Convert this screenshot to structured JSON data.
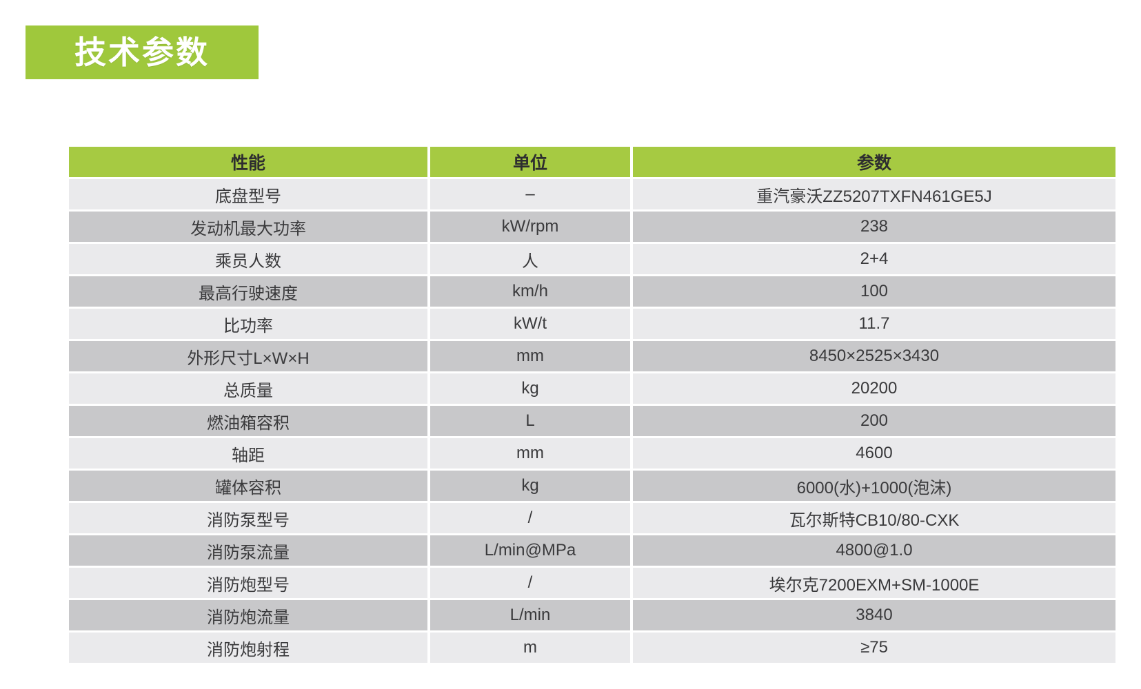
{
  "title_banner": {
    "text": "技术参数"
  },
  "table": {
    "headers": {
      "performance": "性能",
      "unit": "单位",
      "parameter": "参数"
    },
    "rows": [
      {
        "name": "底盘型号",
        "unit": "–",
        "value": "重汽豪沃ZZ5207TXFN461GE5J"
      },
      {
        "name": "发动机最大功率",
        "unit": "kW/rpm",
        "value": "238"
      },
      {
        "name": "乘员人数",
        "unit": "人",
        "value": "2+4"
      },
      {
        "name": "最高行驶速度",
        "unit": "km/h",
        "value": "100"
      },
      {
        "name": "比功率",
        "unit": "kW/t",
        "value": "11.7"
      },
      {
        "name": "外形尺寸L×W×H",
        "unit": "mm",
        "value": "8450×2525×3430"
      },
      {
        "name": "总质量",
        "unit": "kg",
        "value": "20200"
      },
      {
        "name": "燃油箱容积",
        "unit": "L",
        "value": "200"
      },
      {
        "name": "轴距",
        "unit": "mm",
        "value": "4600"
      },
      {
        "name": "罐体容积",
        "unit": "kg",
        "value": "6000(水)+1000(泡沫)"
      },
      {
        "name": "消防泵型号",
        "unit": "/",
        "value": "瓦尔斯特CB10/80-CXK"
      },
      {
        "name": "消防泵流量",
        "unit": "L/min@MPa",
        "value": "4800@1.0"
      },
      {
        "name": "消防炮型号",
        "unit": "/",
        "value": "埃尔克7200EXM+SM-1000E"
      },
      {
        "name": "消防炮流量",
        "unit": "L/min",
        "value": "3840"
      },
      {
        "name": "消防炮射程",
        "unit": "m",
        "value": "≥75"
      }
    ]
  },
  "colors": {
    "accent_green": "#9fc83c",
    "header_green": "#a6ca42",
    "row_light": "#eaeaec",
    "row_dark": "#c8c8ca",
    "text_dark": "#3a3a3c",
    "title_text": "#ffffff"
  }
}
